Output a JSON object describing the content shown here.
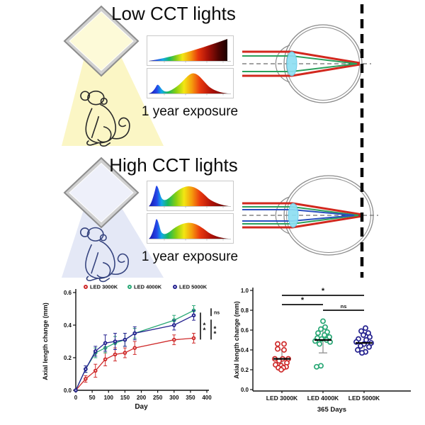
{
  "panels": {
    "low": {
      "title": "Low CCT lights",
      "exposure_label": "1 year exposure"
    },
    "high": {
      "title": "High CCT lights",
      "exposure_label": "1 year exposure"
    }
  },
  "colors": {
    "low_beam": "#fbf6c5",
    "low_lamp": "#fdfad8",
    "high_beam": "#e4e8f6",
    "high_lamp": "#eef0fa",
    "lens": "#8edff2",
    "ray_red": "#d2281e",
    "ray_green": "#2ba05c",
    "ray_blue": "#2a4fc0",
    "monkey_low": "#2a2a2a",
    "monkey_high": "#36447f",
    "led_3000k": "#cf2b2b",
    "led_4000k": "#2aa876",
    "led_5000k": "#24218f"
  },
  "chart_data": [
    {
      "type": "line",
      "title": "",
      "xlabel": "Day",
      "ylabel": "Axial length change (mm)",
      "xlim": [
        0,
        400
      ],
      "ylim": [
        0,
        0.6
      ],
      "x_ticks": [
        0,
        50,
        100,
        150,
        200,
        250,
        300,
        350,
        400
      ],
      "y_ticks": [
        "0.0",
        "0.2",
        "0.4",
        "0.6"
      ],
      "grid": false,
      "legend_position": "top",
      "x": [
        0,
        30,
        60,
        90,
        120,
        150,
        180,
        300,
        360
      ],
      "series": [
        {
          "name": "LED 3000K",
          "color": "#cf2b2b",
          "values": [
            0,
            0.07,
            0.12,
            0.19,
            0.22,
            0.23,
            0.26,
            0.31,
            0.32
          ],
          "errors": [
            0,
            0.02,
            0.04,
            0.04,
            0.04,
            0.03,
            0.04,
            0.03,
            0.03
          ]
        },
        {
          "name": "LED 4000K",
          "color": "#2aa876",
          "values": [
            0,
            0.13,
            0.23,
            0.26,
            0.29,
            0.31,
            0.35,
            0.43,
            0.49
          ],
          "errors": [
            0,
            0.02,
            0.03,
            0.03,
            0.04,
            0.04,
            0.03,
            0.03,
            0.03
          ]
        },
        {
          "name": "LED 5000K",
          "color": "#24218f",
          "values": [
            0,
            0.13,
            0.24,
            0.29,
            0.3,
            0.31,
            0.35,
            0.4,
            0.46
          ],
          "errors": [
            0,
            0.02,
            0.03,
            0.05,
            0.05,
            0.04,
            0.04,
            0.03,
            0.03
          ]
        }
      ],
      "significance": [
        {
          "between": [
            "LED 4000K",
            "LED 3000K"
          ],
          "label": "**"
        },
        {
          "between": [
            "LED 4000K",
            "LED 5000K"
          ],
          "label": "ns"
        },
        {
          "between": [
            "LED 5000K",
            "LED 3000K"
          ],
          "label": "**"
        }
      ]
    },
    {
      "type": "scatter",
      "title": "",
      "xlabel": "365 Days",
      "ylabel": "Axial length change (mm)",
      "ylim": [
        0,
        1.0
      ],
      "y_ticks": [
        "0.0",
        "0.2",
        "0.4",
        "0.6",
        "0.8",
        "1.0"
      ],
      "categories": [
        "LED 3000K",
        "LED 4000K",
        "LED 5000K"
      ],
      "groups": [
        {
          "name": "LED 3000K",
          "color": "#cf2b2b",
          "mean": 0.31,
          "sd": [
            0.23,
            0.4
          ],
          "points": [
            [
              -6,
              0.46
            ],
            [
              3,
              0.46
            ],
            [
              -6,
              0.41
            ],
            [
              3,
              0.4
            ],
            [
              -10,
              0.31
            ],
            [
              1,
              0.31
            ],
            [
              9,
              0.31
            ],
            [
              -4,
              0.29
            ],
            [
              7,
              0.27
            ],
            [
              -9,
              0.25
            ],
            [
              -1,
              0.24
            ],
            [
              6,
              0.23
            ],
            [
              -5,
              0.22
            ],
            [
              2,
              0.22
            ],
            [
              -1,
              0.2
            ]
          ]
        },
        {
          "name": "LED 4000K",
          "color": "#2aa876",
          "mean": 0.5,
          "sd": [
            0.37,
            0.62
          ],
          "points": [
            [
              0,
              0.69
            ],
            [
              3,
              0.63
            ],
            [
              -3,
              0.61
            ],
            [
              6,
              0.58
            ],
            [
              -7,
              0.57
            ],
            [
              2,
              0.55
            ],
            [
              9,
              0.53
            ],
            [
              -8,
              0.52
            ],
            [
              -2,
              0.51
            ],
            [
              5,
              0.5
            ],
            [
              -11,
              0.49
            ],
            [
              10,
              0.48
            ],
            [
              -5,
              0.46
            ],
            [
              -3,
              0.24
            ],
            [
              -9,
              0.23
            ]
          ]
        },
        {
          "name": "LED 5000K",
          "color": "#24218f",
          "mean": 0.47,
          "sd": [
            0.37,
            0.57
          ],
          "points": [
            [
              2,
              0.62
            ],
            [
              -4,
              0.59
            ],
            [
              6,
              0.57
            ],
            [
              -1,
              0.55
            ],
            [
              8,
              0.53
            ],
            [
              -8,
              0.51
            ],
            [
              3,
              0.5
            ],
            [
              -11,
              0.48
            ],
            [
              10,
              0.47
            ],
            [
              0,
              0.46
            ],
            [
              -5,
              0.44
            ],
            [
              7,
              0.43
            ],
            [
              -9,
              0.4
            ],
            [
              2,
              0.38
            ],
            [
              -3,
              0.37
            ]
          ]
        }
      ],
      "significance": [
        {
          "between": [
            "LED 3000K",
            "LED 5000K"
          ],
          "label": "*"
        },
        {
          "between": [
            "LED 3000K",
            "LED 4000K"
          ],
          "label": "*"
        },
        {
          "between": [
            "LED 4000K",
            "LED 5000K"
          ],
          "label": "ns"
        }
      ]
    }
  ]
}
